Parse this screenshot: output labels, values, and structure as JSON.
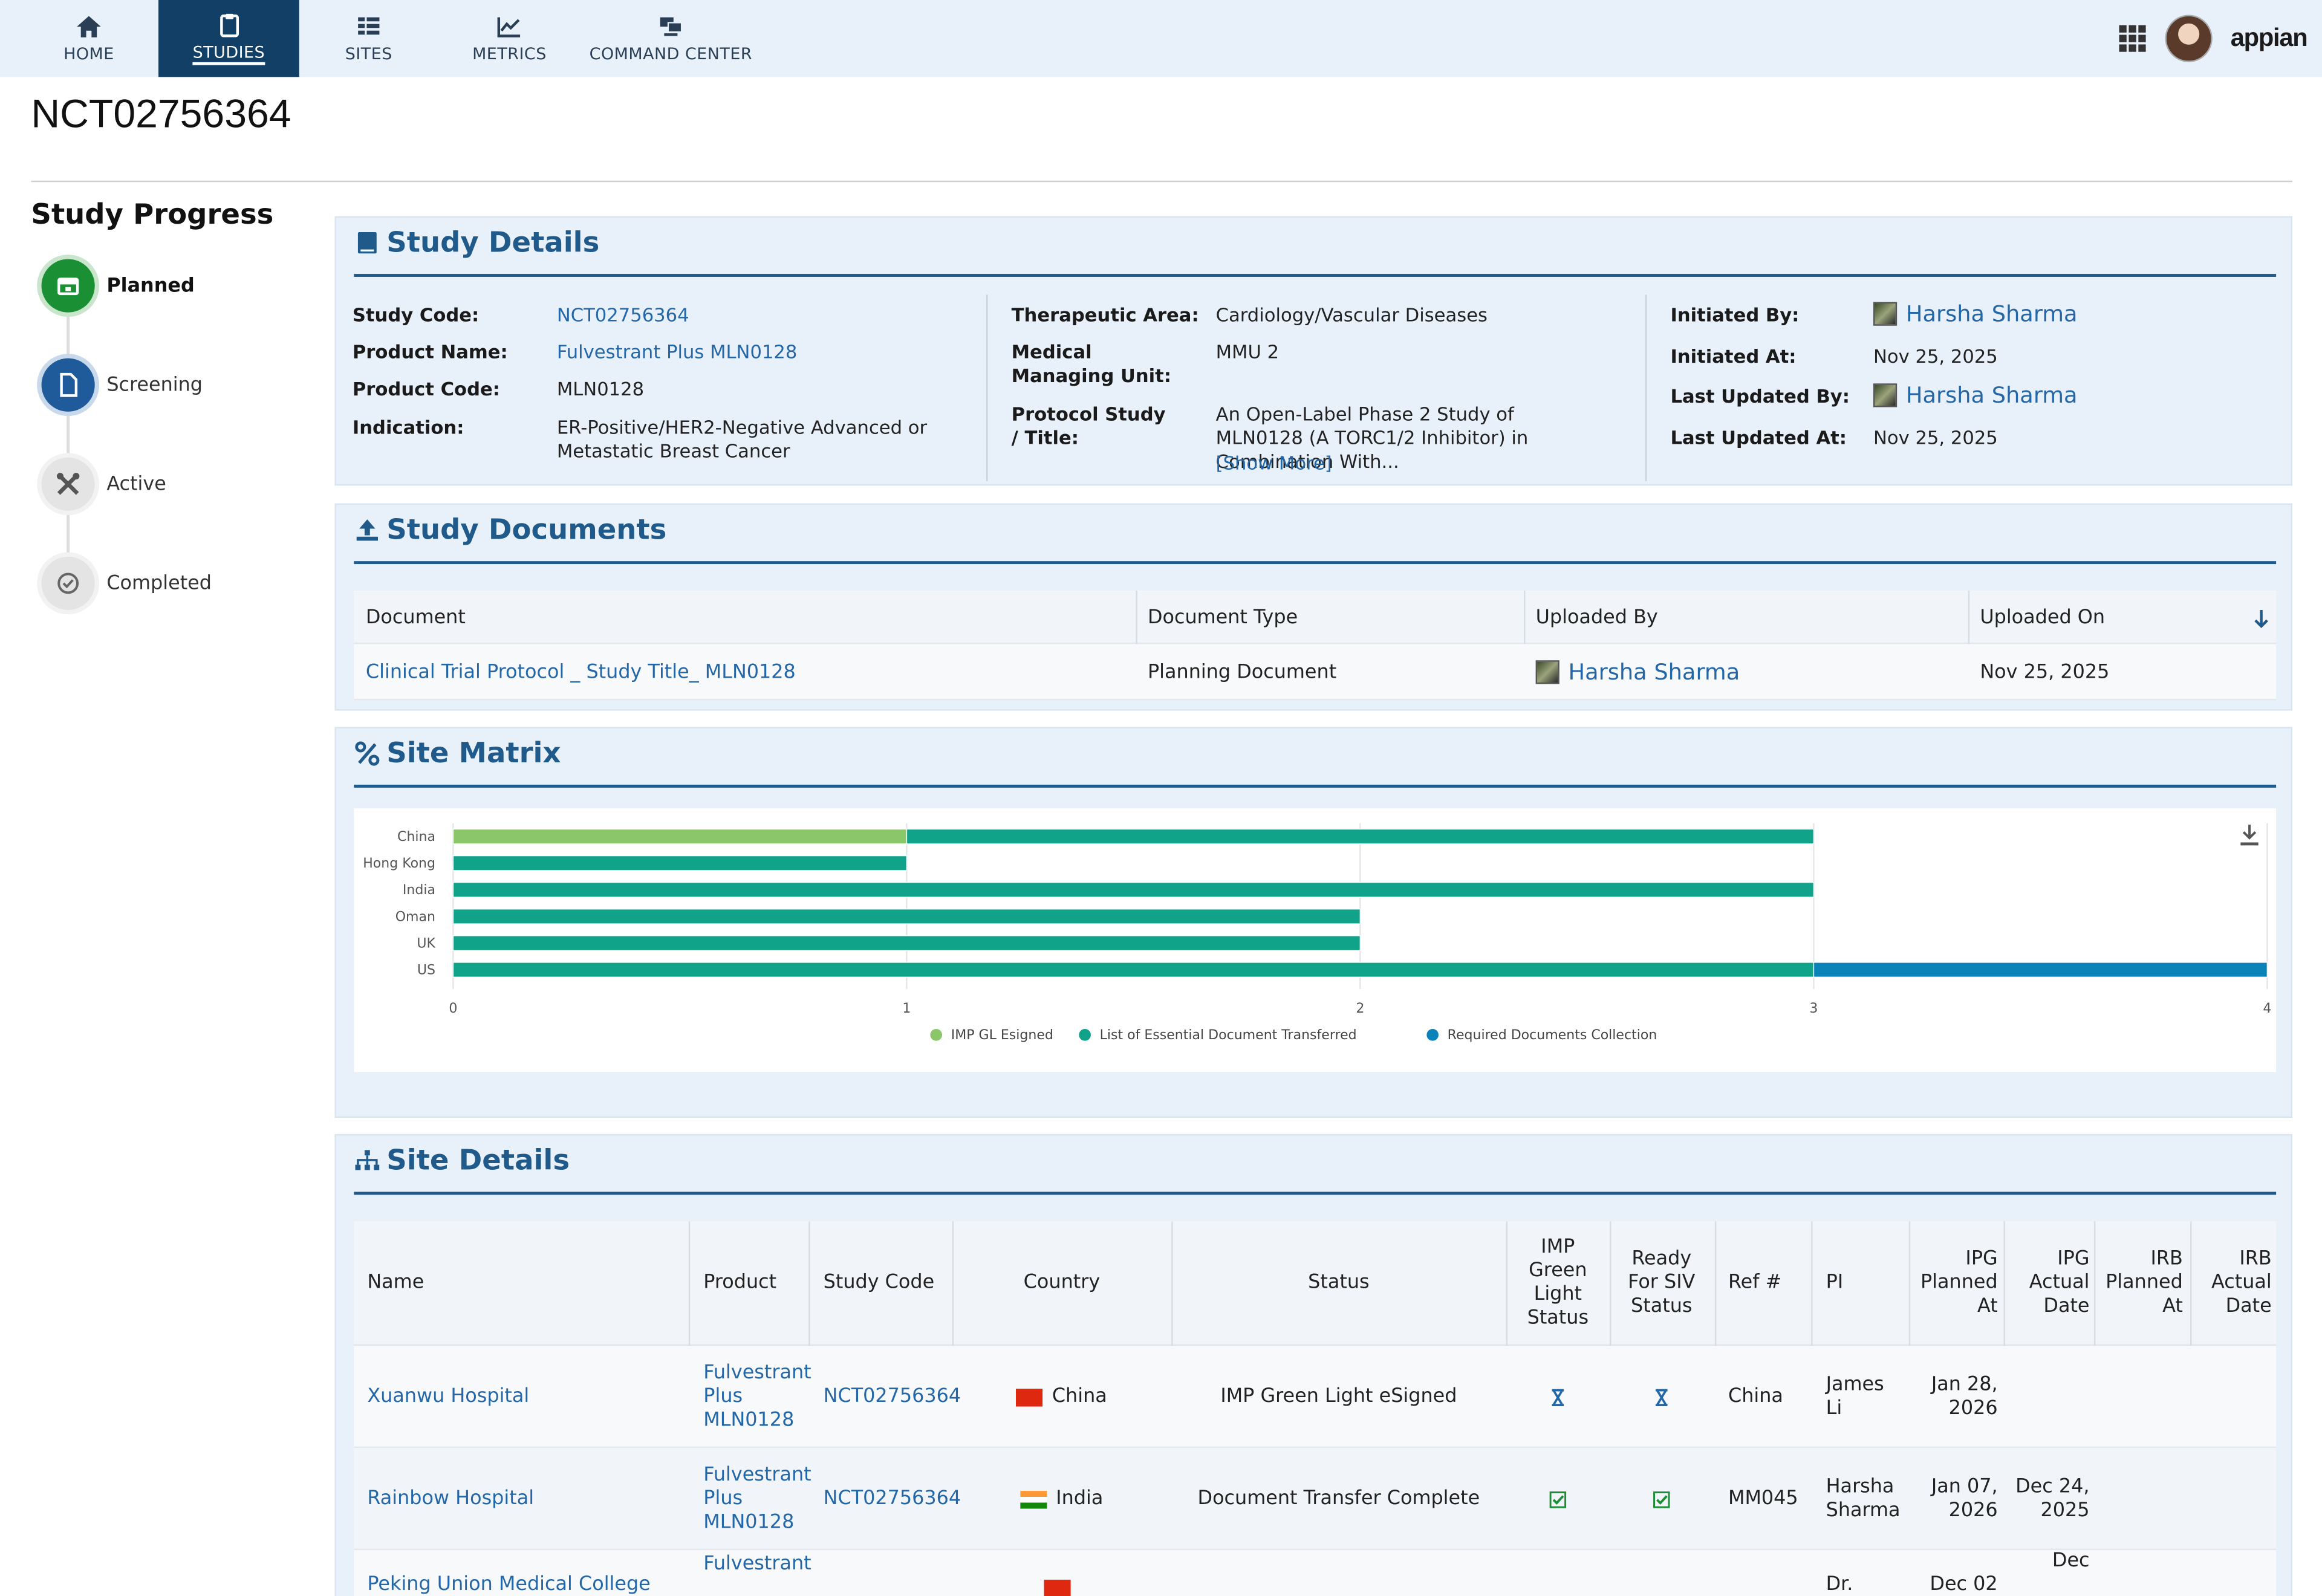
{
  "nav": {
    "items": [
      {
        "label": "HOME",
        "icon": "home-icon"
      },
      {
        "label": "STUDIES",
        "icon": "clipboard-icon",
        "active": true
      },
      {
        "label": "SITES",
        "icon": "grid-icon"
      },
      {
        "label": "METRICS",
        "icon": "line-chart-icon"
      },
      {
        "label": "COMMAND CENTER",
        "icon": "command-center-icon"
      }
    ],
    "brand": "appian"
  },
  "record_title": "NCT02756364",
  "progress": {
    "title": "Study Progress",
    "steps": [
      "Planned",
      "Screening",
      "Active",
      "Completed"
    ],
    "current": "Planned"
  },
  "study_details": {
    "title": "Study Details",
    "col1": [
      {
        "label": "Study Code:",
        "value": "NCT02756364",
        "link": true
      },
      {
        "label": "Product Name:",
        "value": "Fulvestrant Plus MLN0128",
        "link": true
      },
      {
        "label": "Product Code:",
        "value": "MLN0128"
      },
      {
        "label": "Indication:",
        "value": "ER-Positive/HER2-Negative Advanced or Metastatic Breast Cancer"
      }
    ],
    "col2": [
      {
        "label": "Therapeutic Area:",
        "value": "Cardiology/Vascular Diseases"
      },
      {
        "label": "Medical Managing Unit:",
        "value": "MMU 2"
      },
      {
        "label": "Protocol Study / Title:",
        "value": "An Open-Label Phase 2 Study of MLN0128 (A TORC1/2 Inhibitor) in Combination With...",
        "more": "[Show More]"
      }
    ],
    "col3": [
      {
        "label": "Initiated By:",
        "value": "Harsha Sharma",
        "person": true
      },
      {
        "label": "Initiated At:",
        "value": "Nov 25, 2025"
      },
      {
        "label": "Last Updated By:",
        "value": "Harsha Sharma",
        "person": true
      },
      {
        "label": "Last Updated At:",
        "value": "Nov 25, 2025"
      }
    ]
  },
  "study_documents": {
    "title": "Study Documents",
    "columns": [
      "Document",
      "Document Type",
      "Uploaded By",
      "Uploaded On"
    ],
    "rows": [
      {
        "document": "Clinical Trial Protocol _ Study Title_ MLN0128",
        "type": "Planning Document",
        "uploaded_by": "Harsha Sharma",
        "uploaded_on": "Nov 25, 2025"
      }
    ]
  },
  "site_matrix": {
    "title": "Site Matrix"
  },
  "chart_data": {
    "type": "bar",
    "orientation": "horizontal",
    "stacked": true,
    "categories": [
      "China",
      "Hong Kong",
      "India",
      "Oman",
      "UK",
      "US"
    ],
    "series": [
      {
        "name": "IMP GL Esigned",
        "color": "#8cc66a",
        "values": [
          1,
          0,
          0,
          0,
          0,
          0
        ]
      },
      {
        "name": "List of Essential Document Transferred",
        "color": "#11a38a",
        "values": [
          2,
          1,
          3,
          2,
          2,
          3
        ]
      },
      {
        "name": "Required Documents Collection",
        "color": "#0b83b8",
        "values": [
          0,
          0,
          0,
          0,
          0,
          1
        ]
      }
    ],
    "xlim": [
      0,
      4
    ],
    "xticks": [
      "0",
      "1",
      "2",
      "3",
      "4"
    ],
    "grid": true,
    "legend": "bottom"
  },
  "site_details": {
    "title": "Site Details",
    "columns": [
      "Name",
      "Product",
      "Study Code",
      "Country",
      "Status",
      "IMP Green Light Status",
      "Ready For SIV Status",
      "Ref #",
      "PI",
      "IPG Planned At",
      "IPG Actual Date",
      "IRB Planned At",
      "IRB Actual Date"
    ],
    "rows": [
      {
        "name": "Xuanwu Hospital",
        "product": "Fulvestrant Plus MLN0128",
        "study_code": "NCT02756364",
        "country": "China",
        "flag": "cn",
        "status": "IMP Green Light eSigned",
        "imp_icon": "hourglass-icon",
        "siv_icon": "hourglass-icon",
        "ref": "China",
        "pi": "James Li",
        "ipg_planned": "Jan 28, 2026",
        "ipg_actual": "",
        "irb_planned": "",
        "irb_actual": ""
      },
      {
        "name": "Rainbow Hospital",
        "product": "Fulvestrant Plus MLN0128",
        "study_code": "NCT02756364",
        "country": "India",
        "flag": "in",
        "status": "Document Transfer Complete",
        "imp_icon": "check-icon",
        "siv_icon": "check-icon",
        "ref": "MM045",
        "pi": "Harsha Sharma",
        "ipg_planned": "Jan 07, 2026",
        "ipg_actual": "Dec 24, 2025",
        "irb_planned": "",
        "irb_actual": ""
      },
      {
        "name": "Peking Union Medical College",
        "product": "Fulvestrant",
        "study_code": "",
        "country": "",
        "flag": "red",
        "status": "",
        "imp_icon": "",
        "siv_icon": "",
        "ref": "",
        "pi": "Dr. Min-",
        "ipg_planned": "Dec 02",
        "ipg_actual": "Dec",
        "irb_planned": "",
        "irb_actual": ""
      }
    ]
  },
  "colors": {
    "accent": "#1f5a8a",
    "nav_active": "#123f66",
    "link": "#2467a8",
    "planned": "#1a8f34",
    "screening": "#1f5a9a"
  }
}
